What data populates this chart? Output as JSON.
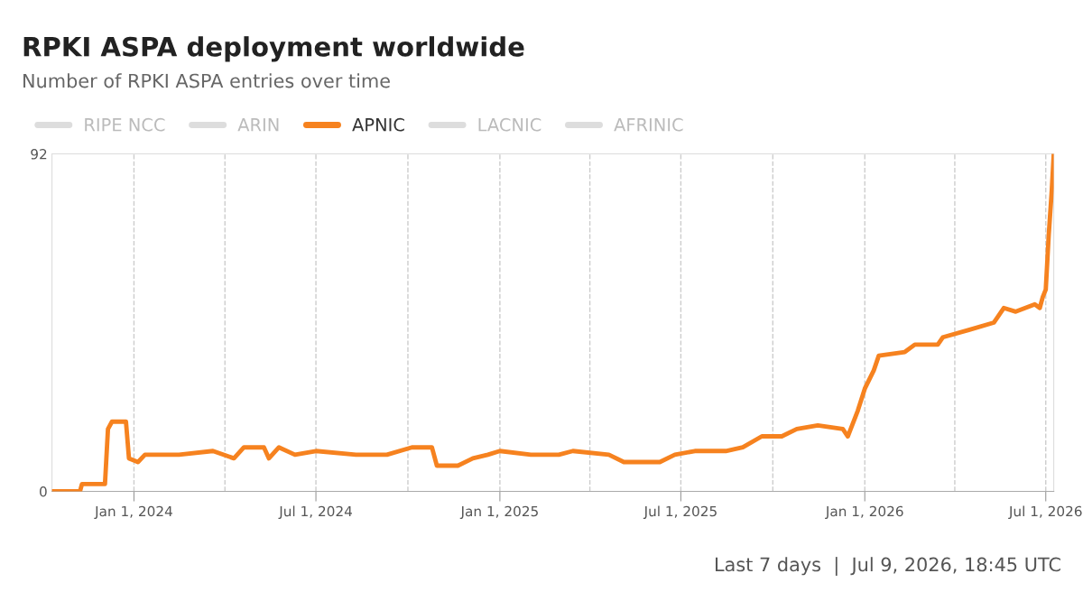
{
  "chart_data": {
    "type": "line",
    "title": "RPKI ASPA deployment worldwide",
    "subtitle": "Number of RPKI ASPA entries over time",
    "annotations": [
      "Last 7 days  |  Jul 9, 2026, 18:45 UTC"
    ],
    "x": [
      "2023-10-12",
      "2023-10-25",
      "2023-11-08",
      "2023-11-10",
      "2023-12-03",
      "2023-12-06",
      "2023-12-10",
      "2023-12-24",
      "2023-12-27",
      "2024-01-05",
      "2024-01-12",
      "2024-02-15",
      "2024-03-20",
      "2024-04-10",
      "2024-04-20",
      "2024-05-10",
      "2024-05-15",
      "2024-05-25",
      "2024-06-10",
      "2024-07-01",
      "2024-08-10",
      "2024-09-10",
      "2024-10-05",
      "2024-10-25",
      "2024-10-30",
      "2024-11-20",
      "2024-12-05",
      "2024-12-20",
      "2025-01-01",
      "2025-02-01",
      "2025-03-01",
      "2025-03-15",
      "2025-04-20",
      "2025-05-05",
      "2025-06-10",
      "2025-06-25",
      "2025-07-15",
      "2025-08-15",
      "2025-09-01",
      "2025-09-20",
      "2025-10-10",
      "2025-10-25",
      "2025-11-15",
      "2025-12-10",
      "2025-12-15",
      "2025-12-25",
      "2026-01-01",
      "2026-01-10",
      "2026-01-15",
      "2026-02-10",
      "2026-02-20",
      "2026-03-15",
      "2026-03-20",
      "2026-04-15",
      "2026-05-10",
      "2026-05-20",
      "2026-06-01",
      "2026-06-20",
      "2026-06-25",
      "2026-06-28",
      "2026-07-01",
      "2026-07-04",
      "2026-07-07",
      "2026-07-09"
    ],
    "series": [
      {
        "name": "RIPE NCC",
        "color": "#dddddd",
        "values": [
          null,
          null,
          null,
          null,
          null,
          null,
          null,
          null,
          null,
          null,
          null,
          null,
          null,
          null,
          null,
          null,
          null,
          null,
          null,
          null,
          null,
          null,
          null,
          null,
          null,
          null,
          null,
          null,
          null,
          null,
          null,
          null,
          null,
          null,
          null,
          null,
          null,
          null,
          null,
          null,
          null,
          null,
          null,
          null,
          null,
          null,
          null,
          null,
          null,
          null,
          null,
          null,
          null,
          null,
          null,
          null,
          null,
          null,
          null,
          null,
          null,
          null,
          null,
          null
        ]
      },
      {
        "name": "ARIN",
        "color": "#dddddd",
        "values": [
          null,
          null,
          null,
          null,
          null,
          null,
          null,
          null,
          null,
          null,
          null,
          null,
          null,
          null,
          null,
          null,
          null,
          null,
          null,
          null,
          null,
          null,
          null,
          null,
          null,
          null,
          null,
          null,
          null,
          null,
          null,
          null,
          null,
          null,
          null,
          null,
          null,
          null,
          null,
          null,
          null,
          null,
          null,
          null,
          null,
          null,
          null,
          null,
          null,
          null,
          null,
          null,
          null,
          null,
          null,
          null,
          null,
          null,
          null,
          null,
          null,
          null,
          null,
          null
        ]
      },
      {
        "name": "APNIC",
        "color": "#f6821f",
        "values": [
          0,
          0,
          0,
          2,
          2,
          17,
          19,
          19,
          9,
          8,
          10,
          10,
          11,
          9,
          12,
          12,
          9,
          12,
          10,
          11,
          10,
          10,
          12,
          12,
          7,
          7,
          9,
          10,
          11,
          10,
          10,
          11,
          10,
          8,
          8,
          10,
          11,
          11,
          12,
          15,
          15,
          17,
          18,
          17,
          15,
          22,
          28,
          33,
          37,
          38,
          40,
          40,
          42,
          44,
          46,
          50,
          49,
          51,
          50,
          53,
          55,
          70,
          82,
          92
        ]
      },
      {
        "name": "LACNIC",
        "color": "#dddddd",
        "values": [
          null,
          null,
          null,
          null,
          null,
          null,
          null,
          null,
          null,
          null,
          null,
          null,
          null,
          null,
          null,
          null,
          null,
          null,
          null,
          null,
          null,
          null,
          null,
          null,
          null,
          null,
          null,
          null,
          null,
          null,
          null,
          null,
          null,
          null,
          null,
          null,
          null,
          null,
          null,
          null,
          null,
          null,
          null,
          null,
          null,
          null,
          null,
          null,
          null,
          null,
          null,
          null,
          null,
          null,
          null,
          null,
          null,
          null,
          null,
          null,
          null,
          null,
          null,
          null
        ]
      },
      {
        "name": "AFRINIC",
        "color": "#dddddd",
        "values": [
          null,
          null,
          null,
          null,
          null,
          null,
          null,
          null,
          null,
          null,
          null,
          null,
          null,
          null,
          null,
          null,
          null,
          null,
          null,
          null,
          null,
          null,
          null,
          null,
          null,
          null,
          null,
          null,
          null,
          null,
          null,
          null,
          null,
          null,
          null,
          null,
          null,
          null,
          null,
          null,
          null,
          null,
          null,
          null,
          null,
          null,
          null,
          null,
          null,
          null,
          null,
          null,
          null,
          null,
          null,
          null,
          null,
          null,
          null,
          null,
          null,
          null,
          null,
          null
        ]
      }
    ],
    "xlim": [
      "2023-10-11",
      "2026-07-09"
    ],
    "xticks": [
      {
        "value": "2024-01-01",
        "label": "Jan 1, 2024"
      },
      {
        "value": "2024-04-01",
        "label": null
      },
      {
        "value": "2024-07-01",
        "label": "Jul 1, 2024"
      },
      {
        "value": "2024-10-01",
        "label": null
      },
      {
        "value": "2025-01-01",
        "label": "Jan 1, 2025"
      },
      {
        "value": "2025-04-01",
        "label": null
      },
      {
        "value": "2025-07-01",
        "label": "Jul 1, 2025"
      },
      {
        "value": "2025-10-01",
        "label": null
      },
      {
        "value": "2026-01-01",
        "label": "Jan 1, 2026"
      },
      {
        "value": "2026-04-01",
        "label": null
      },
      {
        "value": "2026-07-01",
        "label": "Jul 1, 2026"
      }
    ],
    "ylim": [
      0,
      92
    ],
    "yticks": [
      0,
      92
    ],
    "grid": "x",
    "legend": "top",
    "marker": "none",
    "line_style": "solid"
  }
}
